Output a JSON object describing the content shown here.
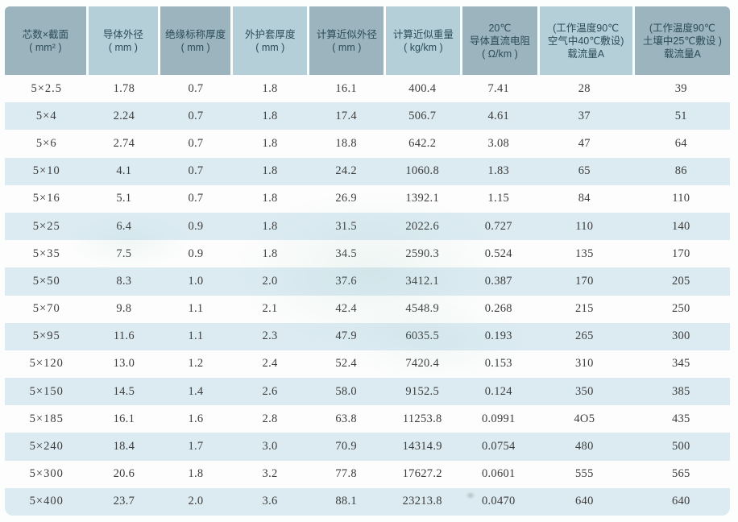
{
  "table": {
    "columns": [
      {
        "id": "cores-section",
        "lines": [
          "芯数×截面",
          "( mm² )"
        ]
      },
      {
        "id": "conductor-od",
        "lines": [
          "导体外径",
          "( mm )"
        ]
      },
      {
        "id": "insulation-thickness",
        "lines": [
          "绝缘标称厚度",
          "( mm )"
        ]
      },
      {
        "id": "sheath-thickness",
        "lines": [
          "外护套厚度",
          "( mm )"
        ]
      },
      {
        "id": "approx-od",
        "lines": [
          "计算近似外径",
          "( mm )"
        ]
      },
      {
        "id": "approx-weight",
        "lines": [
          "计算近似重量",
          "( kg/km )"
        ]
      },
      {
        "id": "dc-resistance-20c",
        "lines": [
          "20℃",
          "导体直流电阻",
          "( Ω/km )"
        ]
      },
      {
        "id": "ampacity-air",
        "lines": [
          "(工作温度90℃",
          "空气中40℃敷设)",
          "载流量A"
        ]
      },
      {
        "id": "ampacity-soil",
        "lines": [
          "(工作温度90℃",
          "土壤中25℃敷设 )",
          "载流量A"
        ]
      }
    ],
    "rows": [
      [
        "5×2.5",
        "1.78",
        "0.7",
        "1.8",
        "16.1",
        "400.4",
        "7.41",
        "28",
        "39"
      ],
      [
        "5×4",
        "2.24",
        "0.7",
        "1.8",
        "17.4",
        "506.7",
        "4.61",
        "37",
        "51"
      ],
      [
        "5×6",
        "2.74",
        "0.7",
        "1.8",
        "18.8",
        "642.2",
        "3.08",
        "47",
        "64"
      ],
      [
        "5×10",
        "4.1",
        "0.7",
        "1.8",
        "24.2",
        "1060.8",
        "1.83",
        "65",
        "86"
      ],
      [
        "5×16",
        "5.1",
        "0.7",
        "1.8",
        "26.9",
        "1392.1",
        "1.15",
        "84",
        "110"
      ],
      [
        "5×25",
        "6.4",
        "0.9",
        "1.8",
        "31.5",
        "2022.6",
        "0.727",
        "110",
        "140"
      ],
      [
        "5×35",
        "7.5",
        "0.9",
        "1.8",
        "34.5",
        "2590.3",
        "0.524",
        "135",
        "170"
      ],
      [
        "5×50",
        "8.3",
        "1.0",
        "2.0",
        "37.6",
        "3412.1",
        "0.387",
        "170",
        "205"
      ],
      [
        "5×70",
        "9.8",
        "1.1",
        "2.1",
        "42.4",
        "4548.9",
        "0.268",
        "215",
        "250"
      ],
      [
        "5×95",
        "11.6",
        "1.1",
        "2.3",
        "47.9",
        "6035.5",
        "0.193",
        "265",
        "300"
      ],
      [
        "5×120",
        "13.0",
        "1.2",
        "2.4",
        "52.4",
        "7420.4",
        "0.153",
        "310",
        "345"
      ],
      [
        "5×150",
        "14.5",
        "1.4",
        "2.6",
        "58.0",
        "9152.5",
        "0.124",
        "350",
        "385"
      ],
      [
        "5×185",
        "16.1",
        "1.6",
        "2.8",
        "63.8",
        "11253.8",
        "0.0991",
        "4O5",
        "435"
      ],
      [
        "5×240",
        "18.4",
        "1.7",
        "3.0",
        "70.9",
        "14314.9",
        "0.0754",
        "480",
        "500"
      ],
      [
        "5×300",
        "20.6",
        "1.8",
        "3.2",
        "77.8",
        "17627.2",
        "0.0601",
        "555",
        "565"
      ],
      [
        "5×400",
        "23.7",
        "2.0",
        "3.6",
        "88.1",
        "23213.8",
        "0.0470",
        "640",
        "640"
      ]
    ]
  },
  "colors": {
    "header_cell_dark": "#9bb4bd",
    "header_cell_light": "#b4cfd7",
    "header_text": "#2c4c58",
    "row_stripe_blue": "#dcebf2",
    "row_white": "#fdfdfd",
    "body_text": "#3c3c3c",
    "page_background": "#fcfdfd"
  }
}
